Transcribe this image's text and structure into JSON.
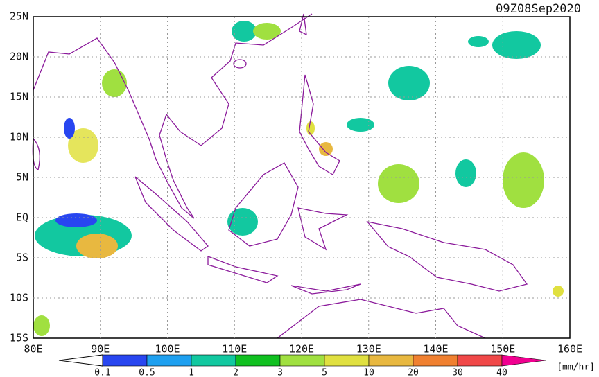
{
  "title": "09Z08Sep2020",
  "map": {
    "lat_labels": [
      "25N",
      "20N",
      "15N",
      "10N",
      "5N",
      "EQ",
      "5S",
      "10S",
      "15S"
    ],
    "lon_labels": [
      "80E",
      "90E",
      "100E",
      "110E",
      "120E",
      "130E",
      "140E",
      "150E",
      "160E"
    ]
  },
  "colorbar": {
    "labels": [
      "0.1",
      "0.5",
      "1",
      "2",
      "3",
      "5",
      "10",
      "20",
      "30",
      "40"
    ],
    "colors": [
      "#ffffff",
      "#2846f0",
      "#1ea0f0",
      "#12c8a0",
      "#10c020",
      "#a0e040",
      "#e0e040",
      "#e8b840",
      "#f08030",
      "#f04848",
      "#f00090"
    ],
    "unit": "[mm/hr]"
  }
}
